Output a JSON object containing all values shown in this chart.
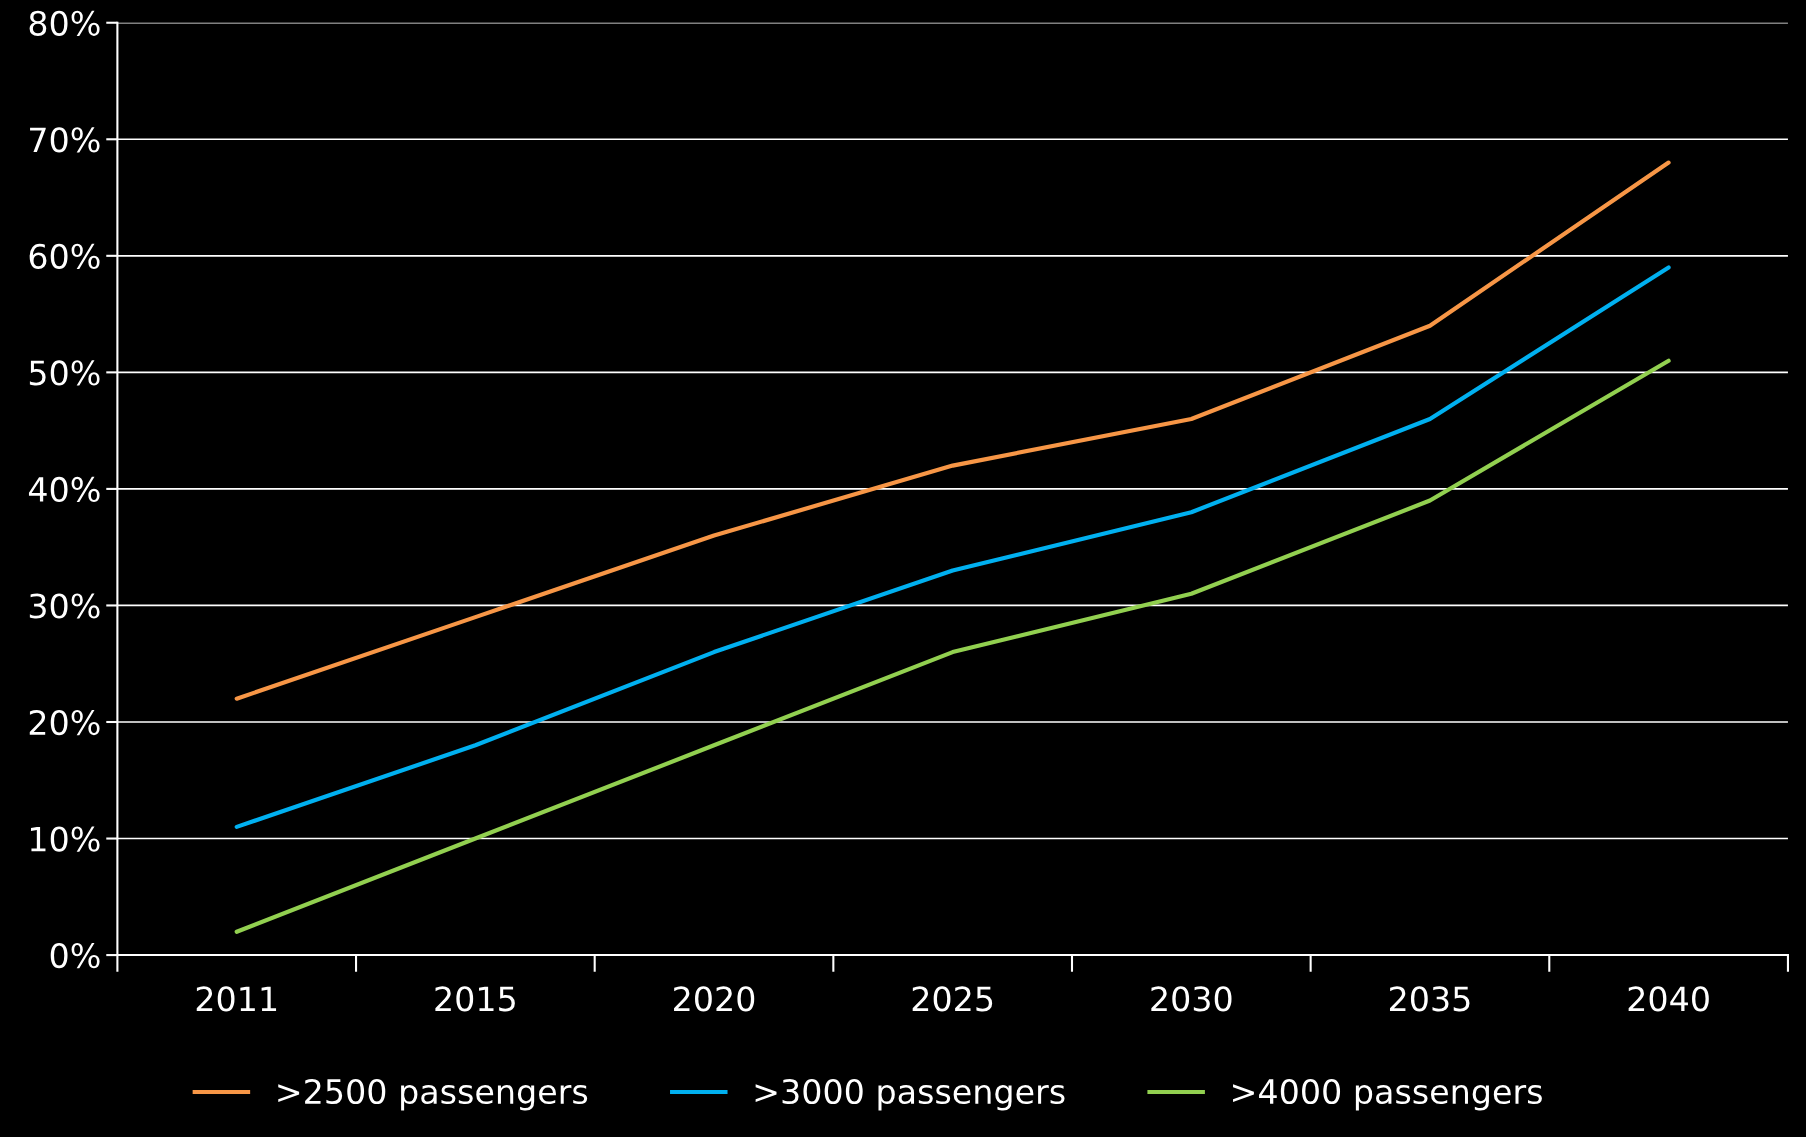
{
  "chart_data": {
    "type": "line",
    "categories": [
      "2011",
      "2015",
      "2020",
      "2025",
      "2030",
      "2035",
      "2040"
    ],
    "series": [
      {
        "name": ">2500 passengers",
        "color": "#f79646",
        "values": [
          22,
          29,
          36,
          42,
          46,
          54,
          68
        ]
      },
      {
        "name": ">3000 passengers",
        "color": "#00b0f0",
        "values": [
          11,
          18,
          26,
          33,
          38,
          46,
          59
        ]
      },
      {
        "name": ">4000 passengers",
        "color": "#92d050",
        "values": [
          2,
          10,
          18,
          26,
          31,
          39,
          51
        ]
      }
    ],
    "ylim": [
      0,
      80
    ],
    "yticks": [
      {
        "value": 0,
        "label": "0%"
      },
      {
        "value": 10,
        "label": "10%"
      },
      {
        "value": 20,
        "label": "20%"
      },
      {
        "value": 30,
        "label": "30%"
      },
      {
        "value": 40,
        "label": "40%"
      },
      {
        "value": 50,
        "label": "50%"
      },
      {
        "value": 60,
        "label": "60%"
      },
      {
        "value": 70,
        "label": "70%"
      },
      {
        "value": 80,
        "label": "80%"
      }
    ],
    "grid": "y",
    "legend": "bottom",
    "marker": "none",
    "line_style": "solid"
  }
}
